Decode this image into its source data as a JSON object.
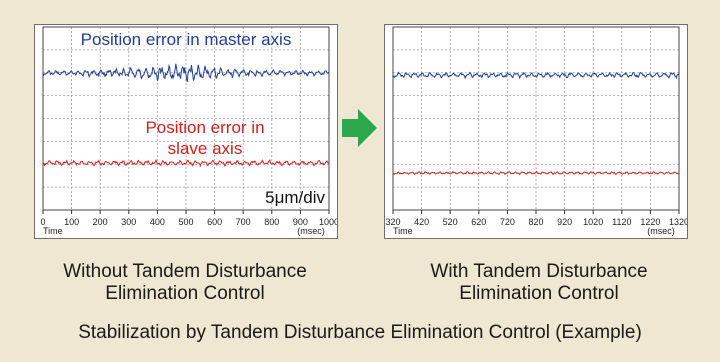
{
  "title": "Stabilization by Tandem Disturbance Elimination Control (Example)",
  "colors": {
    "background": "#efe7d1",
    "master": "#1f3f95",
    "slave": "#d11f1f",
    "arrow": "#2ea64a",
    "grid": "#9a9a9a"
  },
  "chart_data": [
    {
      "type": "line",
      "panel": "left",
      "caption_line1": "Without Tandem Disturbance",
      "caption_line2": "Elimination Control",
      "x": [
        0,
        100,
        200,
        300,
        400,
        500,
        600,
        700,
        800,
        900,
        1000
      ],
      "xtick_labels": [
        "0",
        "100",
        "200",
        "300",
        "400",
        "500",
        "600",
        "700",
        "800",
        "900",
        "1000"
      ],
      "xlim": [
        0,
        1000
      ],
      "xlabel_left": "Time",
      "xlabel_right": "(msec)",
      "y_scale": "5μm/div",
      "grid": true,
      "series": [
        {
          "name": "Position error in master axis",
          "color": "#1f3f95",
          "amplitude_trend": [
            2,
            2,
            3,
            4,
            6,
            7,
            5,
            3,
            2,
            2,
            2
          ]
        },
        {
          "name": "Position error in slave axis",
          "color": "#d11f1f",
          "amplitude_trend": [
            2,
            2,
            2,
            2,
            2,
            2,
            2,
            2,
            2,
            2,
            2
          ]
        }
      ],
      "annotations": {
        "master_line1": "Position error in master axis",
        "slave_line1": "Position error in",
        "slave_line2": "slave axis",
        "scale": "5μm/div"
      }
    },
    {
      "type": "line",
      "panel": "right",
      "caption_line1": "With Tandem Disturbance",
      "caption_line2": "Elimination Control",
      "x": [
        320,
        420,
        520,
        620,
        720,
        820,
        920,
        1020,
        1120,
        1220,
        1320
      ],
      "xtick_labels": [
        "320",
        "420",
        "520",
        "620",
        "720",
        "820",
        "920",
        "1020",
        "1120",
        "1220",
        "1320"
      ],
      "xlim": [
        320,
        1320
      ],
      "xlabel_left": "Time",
      "xlabel_right": "(msec)",
      "grid": true,
      "series": [
        {
          "color": "#1f3f95",
          "amplitude_trend": [
            2,
            2,
            2,
            2,
            2,
            2,
            2,
            2,
            2,
            2,
            2
          ]
        },
        {
          "color": "#d11f1f",
          "amplitude_trend": [
            1,
            1,
            1,
            1,
            1,
            1,
            1,
            1,
            1,
            1,
            1
          ]
        }
      ]
    }
  ]
}
